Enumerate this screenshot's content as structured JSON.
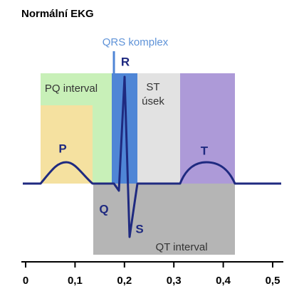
{
  "title": "Normální EKG",
  "regions": {
    "qrs": "QRS komplex",
    "pq": "PQ interval",
    "st": [
      "ST",
      "úsek"
    ],
    "qt": "QT interval"
  },
  "waves": {
    "p": "P",
    "q": "Q",
    "r": "R",
    "s": "S",
    "t": "T"
  },
  "axis": {
    "xlim": [
      0,
      0.5
    ],
    "ticks": [
      0,
      {
        "value": 0.1,
        "label": "0,1"
      },
      {
        "value": 0.2,
        "label": "0,2"
      },
      {
        "value": 0.3,
        "label": "0,3"
      },
      {
        "value": 0.4,
        "label": "0,4"
      },
      {
        "value": 0.5,
        "label": "0,5"
      }
    ]
  }
}
